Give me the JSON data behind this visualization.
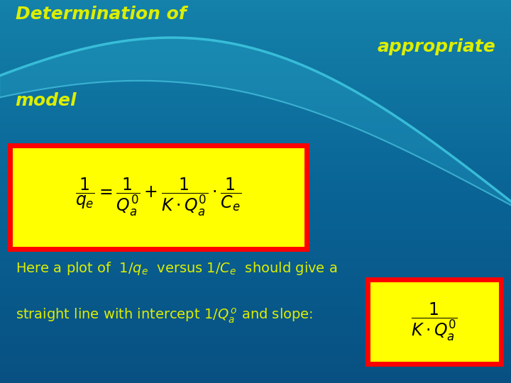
{
  "title_line1": "Determination of",
  "title_line2": "appropriate",
  "title_line3": "model",
  "title_color": "#DDEE00",
  "bg_color_top": "#1a8faa",
  "bg_color_mid": "#1a7a9a",
  "bg_color_bot": "#1060a0",
  "formula_box_color": "#FFFF00",
  "formula_box_border": "#FF0000",
  "slope_box_color": "#FFFF00",
  "slope_box_border": "#FF0000",
  "body_text_color": "#DDEE00",
  "fig_width": 7.2,
  "fig_height": 5.4
}
